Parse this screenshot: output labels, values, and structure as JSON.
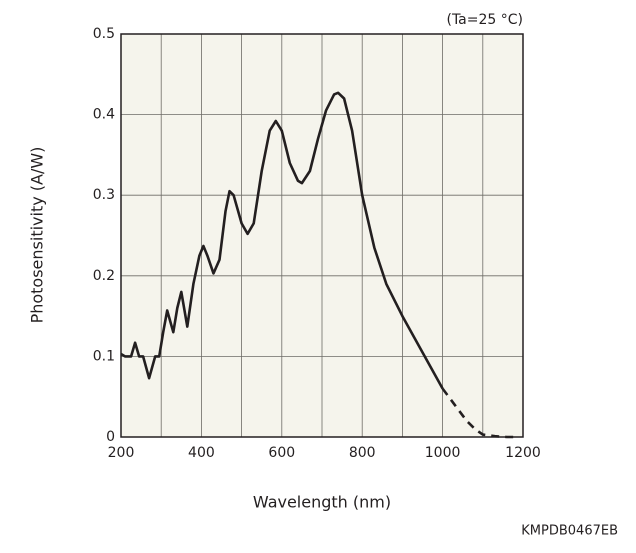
{
  "chart_data": {
    "type": "line",
    "ylabel": "Photosensitivity (A/W)",
    "xlabel": "Wavelength (nm)",
    "annotation": "(Ta=25 °C)",
    "footer": "KMPDB0467EB",
    "x": [
      200,
      210,
      225,
      235,
      245,
      255,
      270,
      285,
      295,
      305,
      315,
      330,
      340,
      350,
      365,
      380,
      395,
      405,
      415,
      430,
      445,
      460,
      470,
      480,
      500,
      515,
      530,
      550,
      570,
      585,
      600,
      620,
      640,
      650,
      670,
      690,
      710,
      730,
      740,
      755,
      775,
      800,
      830,
      860,
      900,
      950,
      1000,
      1030,
      1060,
      1080,
      1100,
      1130,
      1160,
      1190
    ],
    "series": [
      {
        "color": "#231f20",
        "dash": false,
        "values": [
          0.103,
          0.1,
          0.1,
          0.117,
          0.1,
          0.1,
          0.073,
          0.1,
          0.1,
          0.13,
          0.157,
          0.13,
          0.16,
          0.18,
          0.137,
          0.19,
          0.225,
          0.237,
          0.225,
          0.203,
          0.22,
          0.28,
          0.305,
          0.3,
          0.265,
          0.252,
          0.265,
          0.33,
          0.38,
          0.392,
          0.38,
          0.34,
          0.318,
          0.315,
          0.33,
          0.37,
          0.405,
          0.425,
          0.427,
          0.42,
          0.38,
          0.3,
          0.235,
          0.19,
          0.15,
          0.105,
          0.06,
          null,
          null,
          null,
          null,
          null,
          null,
          null
        ]
      },
      {
        "color": "#231f20",
        "dash": true,
        "values": [
          null,
          null,
          null,
          null,
          null,
          null,
          null,
          null,
          null,
          null,
          null,
          null,
          null,
          null,
          null,
          null,
          null,
          null,
          null,
          null,
          null,
          null,
          null,
          null,
          null,
          null,
          null,
          null,
          null,
          null,
          null,
          null,
          null,
          null,
          null,
          null,
          null,
          null,
          null,
          null,
          null,
          null,
          null,
          null,
          null,
          null,
          0.06,
          0.04,
          0.02,
          0.01,
          0.003,
          0.001,
          0,
          0
        ]
      }
    ],
    "xlim": [
      200,
      1200
    ],
    "xticks": [
      200,
      400,
      600,
      800,
      1000,
      1200
    ],
    "ylim": [
      0,
      0.5
    ],
    "yticks": [
      0,
      0.1,
      0.2,
      0.3,
      0.4,
      0.5
    ],
    "grid": true,
    "plot_background": "#f5f4ec"
  }
}
